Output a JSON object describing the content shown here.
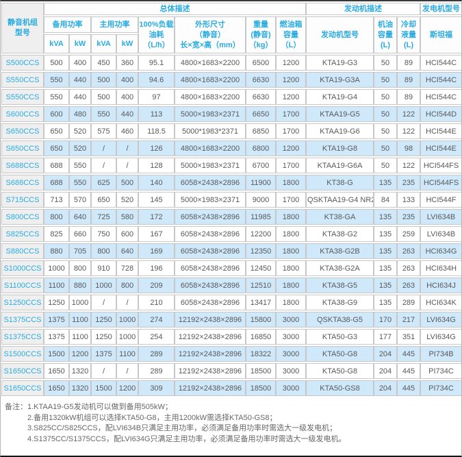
{
  "colors": {
    "accent_cyan": "#29abe2",
    "row_alt_blue": "#cfe9fb",
    "model_col_gray": "#efefef",
    "body_text": "#58585a",
    "grid_line": "#c7c7c7",
    "notes_text": "#666666"
  },
  "table": {
    "header": {
      "model_lines": [
        "静音机组",
        "型号"
      ],
      "group_overall": "总体描述",
      "group_engine": "发动机描述",
      "group_generator": "发电机型号",
      "standby_power": "备用功率",
      "prime_power": "主用功率",
      "kva": "kVA",
      "kw": "kW",
      "fuel_lines": [
        "100%负载",
        "油耗",
        "（L/h）"
      ],
      "dim_lines": [
        "外形尺寸",
        "（静音）",
        "长×宽×高（mm）"
      ],
      "weight_lines": [
        "重量",
        "(静音)",
        "（kg）"
      ],
      "tank_lines": [
        "燃油箱",
        "容量",
        "（L）"
      ],
      "engine_model": "发动机型号",
      "oil_lines": [
        "机油",
        "容量",
        "(L)"
      ],
      "coolant_lines": [
        "冷却",
        "液量",
        "(L)"
      ],
      "stamford": "斯坦福"
    },
    "rows": [
      [
        "S500CCS",
        "500",
        "400",
        "450",
        "360",
        "95.1",
        "4800×1683×2200",
        "6500",
        "1200",
        "KTA19-G3",
        "50",
        "89",
        "HCI544C"
      ],
      [
        "S550CCS",
        "550",
        "440",
        "500",
        "400",
        "94.6",
        "4800×1683×2200",
        "6630",
        "1200",
        "KTA19-G3A",
        "50",
        "89",
        "HCI544C"
      ],
      [
        "S550CCS",
        "550",
        "440",
        "500",
        "400",
        "97",
        "4800×1683×2200",
        "6630",
        "1200",
        "KTA19-G4",
        "50",
        "89",
        "HCI544C"
      ],
      [
        "S600CCS",
        "600",
        "480",
        "550",
        "440",
        "113",
        "5000×1983×2371",
        "6650",
        "1700",
        "KTAA19-G5",
        "50",
        "122",
        "HCI544D"
      ],
      [
        "S650CCS",
        "650",
        "520",
        "575",
        "460",
        "118.5",
        "5000*1983*2371",
        "6850",
        "1700",
        "KTAA19-G6",
        "50",
        "122",
        "HCI544E"
      ],
      [
        "S650CCS",
        "650",
        "520",
        "/",
        "/",
        "126",
        "4800×1683×2200",
        "6800",
        "1200",
        "KTA19-G8",
        "50",
        "98",
        "HCI544E"
      ],
      [
        "S688CCS",
        "688",
        "550",
        "/",
        "/",
        "128",
        "5000×1983×2371",
        "6700",
        "1700",
        "KTAA19-G6A",
        "50",
        "122",
        "HCI544FS"
      ],
      [
        "S688CCS",
        "688",
        "550",
        "625",
        "500",
        "140",
        "6058×2438×2896",
        "11900",
        "1800",
        "KT38-G",
        "135",
        "235",
        "HCI544FS"
      ],
      [
        "S715CCS",
        "713",
        "570",
        "650",
        "520",
        "145",
        "5000×1983×2371",
        "9000",
        "1700",
        "QSKTAA19-G4 NR2",
        "84",
        "133",
        "HCI544F"
      ],
      [
        "S800CCS",
        "800",
        "640",
        "725",
        "580",
        "172",
        "6058×2438×2896",
        "11985",
        "1800",
        "KT38-GA",
        "135",
        "235",
        "LVI634B"
      ],
      [
        "S825CCS",
        "825",
        "660",
        "750",
        "600",
        "167",
        "6058×2438×2896",
        "12200",
        "1800",
        "KTA38-G2",
        "135",
        "259",
        "LVI634B"
      ],
      [
        "S880CCS",
        "880",
        "705",
        "800",
        "640",
        "169",
        "6058×2438×2896",
        "12350",
        "1800",
        "KTA38-G2B",
        "135",
        "263",
        "HCI634G"
      ],
      [
        "S1000CCS",
        "1000",
        "800",
        "910",
        "728",
        "196",
        "6058×2438×2896",
        "12450",
        "1800",
        "KTA38-G2A",
        "135",
        "263",
        "HCI634H"
      ],
      [
        "S1100CCS",
        "1100",
        "880",
        "1000",
        "800",
        "209",
        "6058×2438×2896",
        "12510",
        "1800",
        "KTA38-G5",
        "135",
        "263",
        "HCI634J"
      ],
      [
        "S1250CCS",
        "1250",
        "1000",
        "/",
        "/",
        "210",
        "6058×2438×2896",
        "13417",
        "1800",
        "KTA38-G9",
        "135",
        "289",
        "HCI634K"
      ],
      [
        "S1375CCS",
        "1375",
        "1100",
        "1250",
        "1000",
        "274",
        "12192×2438×2896",
        "15800",
        "3000",
        "QSKTA38-G5",
        "170",
        "217",
        "LVI634G"
      ],
      [
        "S1375CCS",
        "1375",
        "1100",
        "1250",
        "1000",
        "254",
        "12192×2438×2896",
        "16850",
        "3000",
        "KTA50-G3",
        "177",
        "351",
        "LVI634G"
      ],
      [
        "S1500CCS",
        "1500",
        "1200",
        "1375",
        "1100",
        "289",
        "12192×2438×2896",
        "18322",
        "3000",
        "KTA50-G8",
        "204",
        "445",
        "PI734B"
      ],
      [
        "S1650CCS",
        "1650",
        "1320",
        "/",
        "/",
        "289",
        "12192×2438×2896",
        "18500",
        "3000",
        "KTA50-G8",
        "204",
        "445",
        "PI734C"
      ],
      [
        "S1650CCS",
        "1650",
        "1320",
        "1500",
        "1200",
        "309",
        "12192×2438×2896",
        "18500",
        "3000",
        "KTA50-GS8",
        "204",
        "445",
        "PI734C"
      ]
    ]
  },
  "notes": {
    "label": "备注：",
    "lines": [
      "1.KTAA19-G5发动机可以做到备用505kW；",
      "2.备用1320kW机组可以选择KTA50-G8，主用1200kW需选择KTA50-GS8；",
      "3.S825CC/S825CCS，配LVI634B只满足主用功率，必须满足备用功率时需选大一级发电机；",
      "4.S1375CC/S1375CCS，配LVI634G只满足主用功率，必须满足备用功率时需选大一级发电机。"
    ]
  }
}
